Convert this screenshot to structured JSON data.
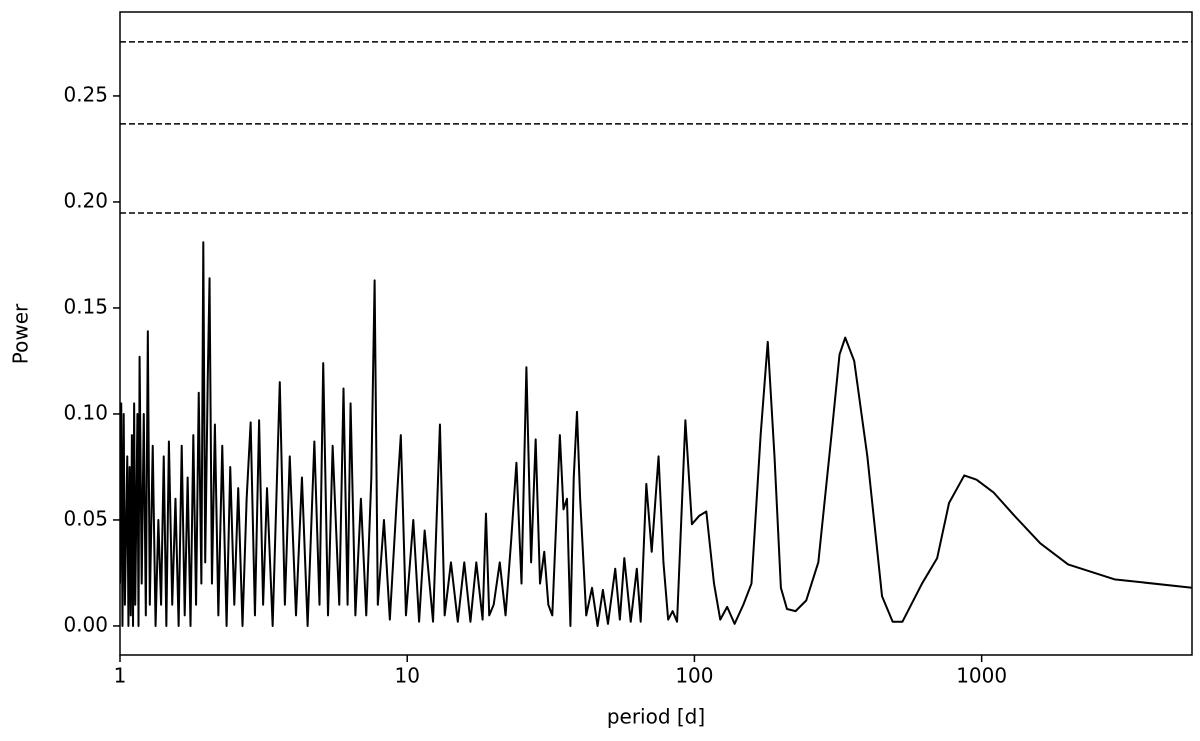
{
  "chart_data": {
    "type": "line",
    "xlabel": "period [d]",
    "ylabel": "Power",
    "xscale": "log",
    "xlim": [
      1,
      5400
    ],
    "ylim": [
      -0.0137,
      0.2896
    ],
    "xticks": [
      1,
      10,
      100,
      1000
    ],
    "yticks": [
      {
        "value": 0,
        "label": "0.00"
      },
      {
        "value": 0.05,
        "label": "0.05"
      },
      {
        "value": 0.1,
        "label": "0.10"
      },
      {
        "value": 0.15,
        "label": "0.15"
      },
      {
        "value": 0.2,
        "label": "0.20"
      },
      {
        "value": 0.25,
        "label": "0.25"
      }
    ],
    "hlines": {
      "values": [
        0.1948,
        0.2368,
        0.2755
      ],
      "color": "#000000",
      "style": "dashed"
    },
    "series": [
      {
        "color": "#000000",
        "x": [
          1.0,
          1.01,
          1.02,
          1.03,
          1.04,
          1.06,
          1.07,
          1.08,
          1.09,
          1.1,
          1.11,
          1.12,
          1.13,
          1.15,
          1.16,
          1.17,
          1.19,
          1.21,
          1.23,
          1.25,
          1.27,
          1.3,
          1.33,
          1.36,
          1.39,
          1.42,
          1.45,
          1.48,
          1.52,
          1.56,
          1.6,
          1.64,
          1.68,
          1.72,
          1.76,
          1.8,
          1.84,
          1.88,
          1.92,
          1.95,
          1.98,
          2.02,
          2.05,
          2.09,
          2.14,
          2.2,
          2.27,
          2.35,
          2.42,
          2.5,
          2.58,
          2.67,
          2.76,
          2.85,
          2.95,
          3.05,
          3.15,
          3.25,
          3.4,
          3.6,
          3.75,
          3.9,
          4.1,
          4.3,
          4.5,
          4.75,
          4.95,
          5.1,
          5.3,
          5.5,
          5.8,
          6.0,
          6.2,
          6.35,
          6.6,
          6.9,
          7.2,
          7.5,
          7.7,
          7.9,
          8.3,
          8.7,
          9.2,
          9.5,
          9.9,
          10.5,
          11,
          11.5,
          12.3,
          13,
          13.5,
          14.2,
          15,
          15.8,
          16.6,
          17.4,
          18.3,
          18.8,
          19.3,
          20,
          21,
          22,
          23,
          24,
          25,
          26,
          27,
          28,
          29,
          30,
          31,
          32,
          34,
          35,
          36,
          37,
          38,
          39,
          40,
          42,
          44,
          46,
          48,
          50,
          53,
          55,
          57,
          60,
          63,
          65,
          68,
          71,
          75,
          78,
          81,
          84,
          87,
          93,
          98,
          104,
          110,
          117,
          123,
          130,
          138,
          148,
          158,
          170,
          180,
          190,
          200,
          210,
          225,
          245,
          270,
          300,
          320,
          335,
          360,
          400,
          450,
          490,
          530,
          620,
          700,
          770,
          870,
          960,
          1100,
          1300,
          1600,
          2000,
          2900,
          5400
        ],
        "values": [
          0.02,
          0.105,
          0,
          0.1,
          0.01,
          0.08,
          0,
          0.075,
          0.005,
          0.09,
          0,
          0.105,
          0.01,
          0.1,
          0,
          0.127,
          0.02,
          0.1,
          0.005,
          0.139,
          0.01,
          0.085,
          0,
          0.05,
          0.01,
          0.08,
          0,
          0.087,
          0.01,
          0.06,
          0,
          0.085,
          0.005,
          0.07,
          0,
          0.09,
          0.01,
          0.11,
          0.02,
          0.181,
          0.03,
          0.115,
          0.164,
          0.02,
          0.095,
          0.005,
          0.085,
          0,
          0.075,
          0.01,
          0.065,
          0,
          0.06,
          0.096,
          0.005,
          0.097,
          0.01,
          0.065,
          0,
          0.115,
          0.01,
          0.08,
          0.005,
          0.07,
          0,
          0.087,
          0.01,
          0.124,
          0.005,
          0.085,
          0.01,
          0.112,
          0.01,
          0.105,
          0.005,
          0.06,
          0.005,
          0.07,
          0.163,
          0.01,
          0.05,
          0.003,
          0.06,
          0.09,
          0.005,
          0.05,
          0.002,
          0.045,
          0.002,
          0.095,
          0.005,
          0.03,
          0.002,
          0.03,
          0.002,
          0.03,
          0.003,
          0.053,
          0.005,
          0.01,
          0.03,
          0.005,
          0.04,
          0.077,
          0.02,
          0.122,
          0.03,
          0.088,
          0.02,
          0.035,
          0.01,
          0.005,
          0.09,
          0.055,
          0.06,
          0,
          0.07,
          0.101,
          0.06,
          0.005,
          0.018,
          0,
          0.017,
          0.001,
          0.027,
          0.003,
          0.032,
          0.002,
          0.027,
          0.002,
          0.067,
          0.035,
          0.08,
          0.03,
          0.003,
          0.007,
          0.002,
          0.097,
          0.048,
          0.052,
          0.054,
          0.02,
          0.003,
          0.009,
          0.001,
          0.01,
          0.02,
          0.09,
          0.134,
          0.08,
          0.018,
          0.008,
          0.007,
          0.012,
          0.03,
          0.09,
          0.128,
          0.136,
          0.125,
          0.08,
          0.014,
          0.002,
          0.002,
          0.02,
          0.032,
          0.058,
          0.071,
          0.069,
          0.063,
          0.052,
          0.039,
          0.029,
          0.022,
          0.018
        ]
      }
    ]
  }
}
